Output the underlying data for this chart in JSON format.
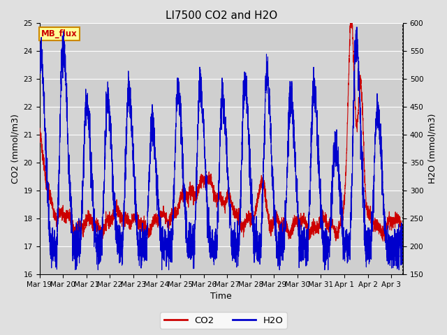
{
  "title": "LI7500 CO2 and H2O",
  "xlabel": "Time",
  "ylabel_left": "CO2 (mmol/m3)",
  "ylabel_right": "H2O (mmol/m3)",
  "ylim_left": [
    16.0,
    25.0
  ],
  "ylim_right": [
    150,
    600
  ],
  "yticks_left": [
    16.0,
    17.0,
    18.0,
    19.0,
    20.0,
    21.0,
    22.0,
    23.0,
    24.0,
    25.0
  ],
  "yticks_right": [
    150,
    200,
    250,
    300,
    350,
    400,
    450,
    500,
    550,
    600
  ],
  "xtick_labels": [
    "Mar 19",
    "Mar 20",
    "Mar 21",
    "Mar 22",
    "Mar 23",
    "Mar 24",
    "Mar 25",
    "Mar 26",
    "Mar 27",
    "Mar 28",
    "Mar 29",
    "Mar 30",
    "Mar 31",
    "Apr 1",
    "Apr 2",
    "Apr 3"
  ],
  "co2_color": "#cc0000",
  "h2o_color": "#0000cc",
  "background_color": "#e0e0e0",
  "plot_bg_color": "#d4d4d4",
  "grid_color": "#ffffff",
  "annotation_text": "MB_flux",
  "annotation_bg": "#ffff99",
  "annotation_border": "#cc8800",
  "annotation_text_color": "#cc0000",
  "legend_co2_label": "CO2",
  "legend_h2o_label": "H2O",
  "title_fontsize": 11,
  "axis_label_fontsize": 9,
  "tick_fontsize": 7.5
}
